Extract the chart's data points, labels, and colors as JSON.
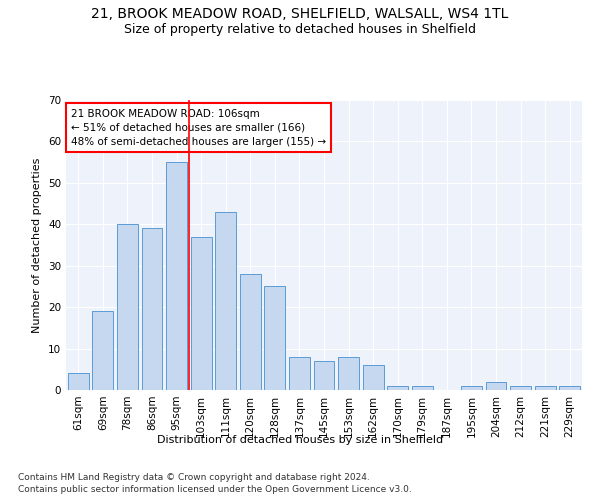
{
  "title1": "21, BROOK MEADOW ROAD, SHELFIELD, WALSALL, WS4 1TL",
  "title2": "Size of property relative to detached houses in Shelfield",
  "xlabel": "Distribution of detached houses by size in Shelfield",
  "ylabel": "Number of detached properties",
  "categories": [
    "61sqm",
    "69sqm",
    "78sqm",
    "86sqm",
    "95sqm",
    "103sqm",
    "111sqm",
    "120sqm",
    "128sqm",
    "137sqm",
    "145sqm",
    "153sqm",
    "162sqm",
    "170sqm",
    "179sqm",
    "187sqm",
    "195sqm",
    "204sqm",
    "212sqm",
    "221sqm",
    "229sqm"
  ],
  "values": [
    4,
    19,
    40,
    39,
    55,
    37,
    43,
    28,
    25,
    8,
    7,
    8,
    6,
    1,
    1,
    0,
    1,
    2,
    1,
    1,
    1
  ],
  "bar_color": "#c5d8f0",
  "bar_edge_color": "#5b9bd5",
  "vline_index": 5,
  "annotation_text": "21 BROOK MEADOW ROAD: 106sqm\n← 51% of detached houses are smaller (166)\n48% of semi-detached houses are larger (155) →",
  "annotation_box_color": "white",
  "annotation_box_edge": "red",
  "vline_color": "red",
  "ylim": [
    0,
    70
  ],
  "yticks": [
    0,
    10,
    20,
    30,
    40,
    50,
    60,
    70
  ],
  "footnote1": "Contains HM Land Registry data © Crown copyright and database right 2024.",
  "footnote2": "Contains public sector information licensed under the Open Government Licence v3.0.",
  "bg_color": "#eef3fb",
  "grid_color": "white",
  "title1_fontsize": 10,
  "title2_fontsize": 9,
  "axis_label_fontsize": 8,
  "tick_fontsize": 7.5,
  "annotation_fontsize": 7.5,
  "footnote_fontsize": 6.5
}
